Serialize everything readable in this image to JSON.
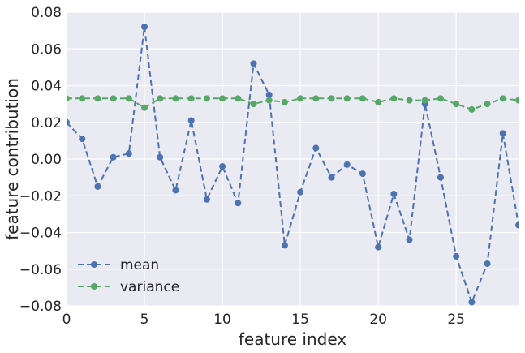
{
  "chart_data": {
    "type": "line",
    "title": "",
    "xlabel": "feature index",
    "ylabel": "feature contribution",
    "xlim": [
      0,
      29
    ],
    "ylim": [
      -0.08,
      0.08
    ],
    "xticks": [
      0,
      5,
      10,
      15,
      20,
      25
    ],
    "xtick_labels": [
      "0",
      "5",
      "10",
      "15",
      "20",
      "25"
    ],
    "yticks": [
      -0.08,
      -0.06,
      -0.04,
      -0.02,
      0.0,
      0.02,
      0.04,
      0.06,
      0.08
    ],
    "ytick_labels": [
      "−0.08",
      "−0.06",
      "−0.04",
      "−0.02",
      "0.00",
      "0.02",
      "0.04",
      "0.06",
      "0.08"
    ],
    "grid": true,
    "legend_position": "lower-left",
    "x": [
      0,
      1,
      2,
      3,
      4,
      5,
      6,
      7,
      8,
      9,
      10,
      11,
      12,
      13,
      14,
      15,
      16,
      17,
      18,
      19,
      20,
      21,
      22,
      23,
      24,
      25,
      26,
      27,
      28,
      29
    ],
    "series": [
      {
        "name": "mean",
        "color": "#4c72b0",
        "values": [
          0.02,
          0.011,
          -0.015,
          0.001,
          0.003,
          0.072,
          0.001,
          -0.017,
          0.021,
          -0.022,
          -0.004,
          -0.024,
          0.052,
          0.035,
          -0.047,
          -0.018,
          0.006,
          -0.01,
          -0.003,
          -0.008,
          -0.048,
          -0.019,
          -0.044,
          0.03,
          -0.01,
          -0.053,
          -0.078,
          -0.057,
          0.014,
          -0.036
        ]
      },
      {
        "name": "variance",
        "color": "#55a868",
        "values": [
          0.033,
          0.033,
          0.033,
          0.033,
          0.033,
          0.028,
          0.033,
          0.033,
          0.033,
          0.033,
          0.033,
          0.033,
          0.03,
          0.032,
          0.031,
          0.033,
          0.033,
          0.033,
          0.033,
          0.033,
          0.031,
          0.033,
          0.032,
          0.032,
          0.033,
          0.03,
          0.027,
          0.03,
          0.033,
          0.032
        ]
      }
    ]
  },
  "style": {
    "plot_background": "#eaeaf2",
    "grid_color": "#ffffff"
  }
}
